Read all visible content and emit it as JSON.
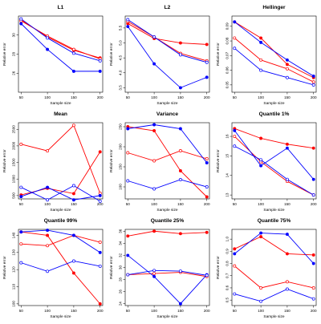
{
  "chart_data": [
    {
      "type": "line",
      "title": "L1",
      "xlabel": "Sample size",
      "ylabel": "Relative error",
      "x": [
        50,
        100,
        150,
        200
      ],
      "xticks": [
        "50",
        "100",
        "150",
        "200"
      ],
      "ylim": [
        0.24,
        0.32
      ],
      "yticks": [
        0.26,
        0.28,
        0.3
      ],
      "ytick_labels": [
        "26",
        "28",
        "30"
      ],
      "series": [
        {
          "color": "#ff0000",
          "marker": "filled",
          "values": [
            0.316,
            0.298,
            0.284,
            0.276
          ]
        },
        {
          "color": "#ff0000",
          "marker": "open",
          "values": [
            0.315,
            0.299,
            0.285,
            0.275
          ]
        },
        {
          "color": "#0000ff",
          "marker": "filled",
          "values": [
            0.312,
            0.285,
            0.262,
            0.262
          ]
        },
        {
          "color": "#0000ff",
          "marker": "open",
          "values": [
            0.317,
            0.297,
            0.281,
            0.273
          ]
        }
      ]
    },
    {
      "type": "line",
      "title": "L2",
      "xlabel": "Sample size",
      "ylabel": "Relative error",
      "x": [
        50,
        100,
        150,
        200
      ],
      "xticks": [
        "50",
        "100",
        "150",
        "200"
      ],
      "ylim": [
        3.35,
        5.9
      ],
      "yticks": [
        3.5,
        4.0,
        4.5,
        5.0,
        5.5
      ],
      "ytick_labels": [
        "3.5",
        "4.0",
        "4.5",
        "5.0",
        "5.5"
      ],
      "series": [
        {
          "color": "#ff0000",
          "marker": "filled",
          "values": [
            5.65,
            5.15,
            5.0,
            4.95
          ]
        },
        {
          "color": "#ff0000",
          "marker": "open",
          "values": [
            5.72,
            5.2,
            4.65,
            4.4
          ]
        },
        {
          "color": "#0000ff",
          "marker": "filled",
          "values": [
            5.55,
            4.3,
            3.5,
            3.85
          ]
        },
        {
          "color": "#0000ff",
          "marker": "open",
          "values": [
            5.78,
            5.2,
            4.6,
            4.35
          ]
        }
      ]
    },
    {
      "type": "line",
      "title": "Hellinger",
      "xlabel": "Sample size",
      "ylabel": "Relative error",
      "x": [
        50,
        100,
        150,
        200
      ],
      "xticks": [
        "50",
        "100",
        "150",
        "200"
      ],
      "ylim": [
        0.045,
        0.097
      ],
      "yticks": [
        0.05,
        0.06,
        0.07,
        0.08,
        0.09
      ],
      "ytick_labels": [
        "0.05",
        "0.06",
        "0.07",
        "0.08",
        "0.09"
      ],
      "series": [
        {
          "color": "#ff0000",
          "marker": "filled",
          "values": [
            0.093,
            0.082,
            0.064,
            0.055
          ]
        },
        {
          "color": "#ff0000",
          "marker": "open",
          "values": [
            0.082,
            0.067,
            0.061,
            0.052
          ]
        },
        {
          "color": "#0000ff",
          "marker": "filled",
          "values": [
            0.093,
            0.079,
            0.067,
            0.056
          ]
        },
        {
          "color": "#0000ff",
          "marker": "open",
          "values": [
            0.075,
            0.06,
            0.055,
            0.05
          ]
        }
      ]
    },
    {
      "type": "line",
      "title": "Mean",
      "xlabel": "Sample size",
      "ylabel": "Relative error",
      "x": [
        50,
        100,
        150,
        200
      ],
      "xticks": [
        "50",
        "100",
        "150",
        "200"
      ],
      "ylim": [
        400,
        2700
      ],
      "yticks": [
        500,
        1000,
        1500,
        2000,
        2500
      ],
      "ytick_labels": [
        "500",
        "1000",
        "1500",
        "2000",
        "2500"
      ],
      "series": [
        {
          "color": "#ff0000",
          "marker": "filled",
          "values": [
            520,
            720,
            560,
            1820
          ]
        },
        {
          "color": "#ff0000",
          "marker": "open",
          "values": [
            2050,
            1850,
            2620,
            570
          ]
        },
        {
          "color": "#0000ff",
          "marker": "filled",
          "values": [
            470,
            750,
            370,
            500
          ]
        },
        {
          "color": "#0000ff",
          "marker": "open",
          "values": [
            750,
            370,
            800,
            330
          ]
        }
      ]
    },
    {
      "type": "line",
      "title": "Variance",
      "xlabel": "Sample size",
      "ylabel": "Relative error",
      "x": [
        50,
        100,
        150,
        200
      ],
      "xticks": [
        "50",
        "100",
        "150",
        "200"
      ],
      "ylim": [
        70,
        260
      ],
      "yticks": [
        100,
        150,
        200,
        250
      ],
      "ytick_labels": [
        "100",
        "150",
        "200",
        "250"
      ],
      "series": [
        {
          "color": "#ff0000",
          "marker": "filled",
          "values": [
            250,
            240,
            140,
            75
          ]
        },
        {
          "color": "#ff0000",
          "marker": "open",
          "values": [
            185,
            165,
            190,
            170
          ]
        },
        {
          "color": "#0000ff",
          "marker": "filled",
          "values": [
            245,
            255,
            245,
            160
          ]
        },
        {
          "color": "#0000ff",
          "marker": "open",
          "values": [
            115,
            95,
            118,
            100
          ]
        }
      ]
    },
    {
      "type": "line",
      "title": "Quantile 1%",
      "xlabel": "Sample size",
      "ylabel": "Relative error",
      "x": [
        50,
        100,
        150,
        200
      ],
      "xticks": [
        "50",
        "100",
        "150",
        "200"
      ],
      "ylim": [
        12.8,
        16.7
      ],
      "yticks": [
        13,
        14,
        15,
        16
      ],
      "ytick_labels": [
        "13",
        "14",
        "15",
        "16"
      ],
      "series": [
        {
          "color": "#ff0000",
          "marker": "filled",
          "values": [
            16.4,
            15.9,
            15.6,
            15.4
          ]
        },
        {
          "color": "#ff0000",
          "marker": "open",
          "values": [
            16.0,
            14.7,
            13.7,
            13.0
          ]
        },
        {
          "color": "#0000ff",
          "marker": "filled",
          "values": [
            16.3,
            14.5,
            15.4,
            13.8
          ]
        },
        {
          "color": "#0000ff",
          "marker": "open",
          "values": [
            15.5,
            14.8,
            13.8,
            13.0
          ]
        }
      ]
    },
    {
      "type": "line",
      "title": "Quantile 99%",
      "xlabel": "Sample size",
      "ylabel": "Relative error",
      "x": [
        50,
        100,
        150,
        200
      ],
      "xticks": [
        "50",
        "100",
        "150",
        "200"
      ],
      "ylim": [
        99,
        143.5
      ],
      "yticks": [
        100,
        110,
        120,
        130,
        140
      ],
      "ytick_labels": [
        "100",
        "110",
        "120",
        "130",
        "140"
      ],
      "series": [
        {
          "color": "#ff0000",
          "marker": "filled",
          "values": [
            142,
            140,
            118,
            100
          ]
        },
        {
          "color": "#ff0000",
          "marker": "open",
          "values": [
            135,
            134,
            140,
            136
          ]
        },
        {
          "color": "#0000ff",
          "marker": "filled",
          "values": [
            142,
            143,
            140,
            130
          ]
        },
        {
          "color": "#0000ff",
          "marker": "open",
          "values": [
            124,
            119,
            125,
            122
          ]
        }
      ]
    },
    {
      "type": "line",
      "title": "Quantile 25%",
      "xlabel": "Sample size",
      "ylabel": "Relative error",
      "x": [
        50,
        100,
        150,
        200
      ],
      "xticks": [
        "50",
        "100",
        "150",
        "200"
      ],
      "ylim": [
        23.7,
        36.3
      ],
      "yticks": [
        24,
        26,
        28,
        30,
        32,
        34,
        36
      ],
      "ytick_labels": [
        "24",
        "26",
        "28",
        "30",
        "32",
        "34",
        "36"
      ],
      "series": [
        {
          "color": "#ff0000",
          "marker": "filled",
          "values": [
            35.2,
            36.0,
            35.6,
            35.8
          ]
        },
        {
          "color": "#ff0000",
          "marker": "open",
          "values": [
            28.8,
            29.0,
            29.2,
            28.5
          ]
        },
        {
          "color": "#0000ff",
          "marker": "filled",
          "values": [
            32.0,
            28.5,
            24.0,
            28.8
          ]
        },
        {
          "color": "#0000ff",
          "marker": "open",
          "values": [
            28.8,
            29.5,
            29.4,
            28.7
          ]
        }
      ]
    },
    {
      "type": "line",
      "title": "Quantile 75%",
      "xlabel": "Sample size",
      "ylabel": "Relative error",
      "x": [
        50,
        100,
        150,
        200
      ],
      "xticks": [
        "50",
        "100",
        "150",
        "200"
      ],
      "ylim": [
        0.455,
        1.08
      ],
      "yticks": [
        0.5,
        0.6,
        0.7,
        0.8,
        0.9,
        1.0
      ],
      "ytick_labels": [
        "0.5",
        "0.6",
        "0.7",
        "0.8",
        "0.9",
        "1.0"
      ],
      "series": [
        {
          "color": "#ff0000",
          "marker": "filled",
          "values": [
            0.92,
            1.02,
            0.88,
            0.87
          ]
        },
        {
          "color": "#ff0000",
          "marker": "open",
          "values": [
            0.78,
            0.6,
            0.65,
            0.6
          ]
        },
        {
          "color": "#0000ff",
          "marker": "filled",
          "values": [
            0.88,
            1.05,
            1.04,
            0.8
          ]
        },
        {
          "color": "#0000ff",
          "marker": "open",
          "values": [
            0.55,
            0.49,
            0.59,
            0.51
          ]
        }
      ]
    }
  ]
}
